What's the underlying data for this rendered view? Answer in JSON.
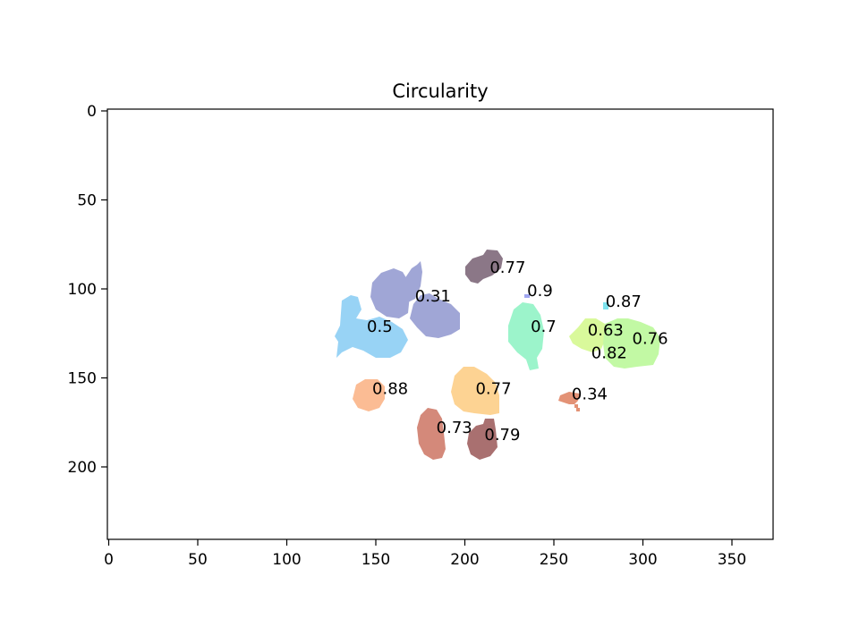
{
  "chart_data": {
    "type": "scatter",
    "title": "Circularity",
    "xlabel": "",
    "ylabel": "",
    "xlim": [
      0,
      373
    ],
    "ylim": [
      240,
      0
    ],
    "x_ticks": [
      0,
      50,
      100,
      150,
      200,
      250,
      300,
      350
    ],
    "y_ticks": [
      0,
      50,
      100,
      150,
      200
    ],
    "grid": false,
    "legend": "none",
    "regions": [
      {
        "label": "0.77",
        "x": 214,
        "y": 88,
        "color": "#8b7787"
      },
      {
        "label": "0.31",
        "x": 172,
        "y": 104,
        "color": "#a0a6d6"
      },
      {
        "label": "0.9",
        "x": 235,
        "y": 101,
        "color": "#a0a6f0"
      },
      {
        "label": "0.87",
        "x": 279,
        "y": 107,
        "color": "#7fe3ee"
      },
      {
        "label": "0.7",
        "x": 237,
        "y": 121,
        "color": "#9cf4cb"
      },
      {
        "label": "0.63",
        "x": 269,
        "y": 123,
        "color": "#d9f99b"
      },
      {
        "label": "0.76",
        "x": 294,
        "y": 128,
        "color": "#c2f9a4"
      },
      {
        "label": "0.5",
        "x": 145,
        "y": 121,
        "color": "#98d3f5"
      },
      {
        "label": "0.82",
        "x": 271,
        "y": 136,
        "color": "#c2f9a4"
      },
      {
        "label": "0.88",
        "x": 148,
        "y": 156,
        "color": "#fbbc94"
      },
      {
        "label": "0.77",
        "x": 206,
        "y": 156,
        "color": "#fdd393"
      },
      {
        "label": "0.34",
        "x": 260,
        "y": 159,
        "color": "#e39276"
      },
      {
        "label": "0.73",
        "x": 184,
        "y": 178,
        "color": "#d4897a"
      },
      {
        "label": "0.79",
        "x": 211,
        "y": 182,
        "color": "#a97070"
      }
    ]
  }
}
